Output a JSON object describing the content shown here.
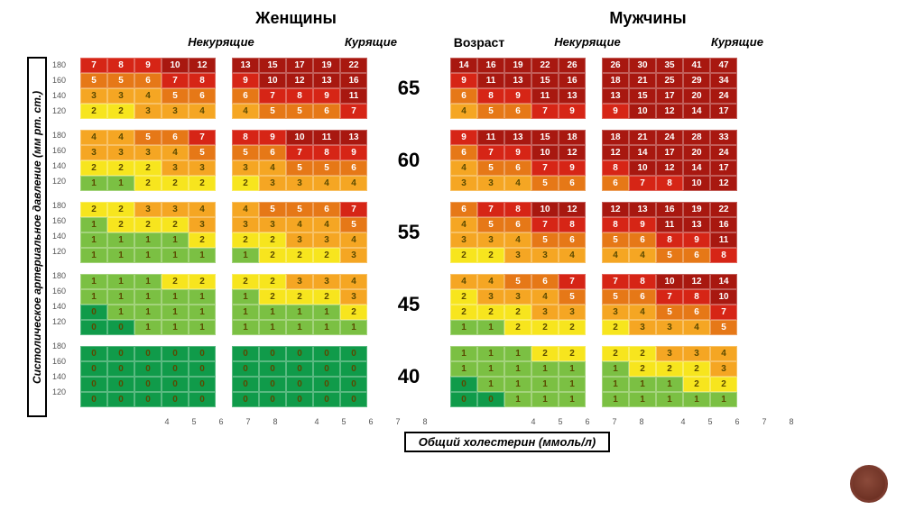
{
  "headers": {
    "women": "Женщины",
    "men": "Мужчины",
    "nonsmokers": "Некурящие",
    "smokers": "Курящие",
    "age": "Возраст"
  },
  "axes": {
    "y_label": "Систолическое артериальное давление (мм рт. ст.)",
    "x_label": "Общий холестерин (ммоль/л)",
    "y_ticks": [
      180,
      160,
      140,
      120
    ],
    "x_ticks": [
      4,
      5,
      6,
      7,
      8
    ]
  },
  "layout": {
    "block_w": 150,
    "block_h": 68,
    "y_tick_col_w": 26,
    "age_col_w": 58,
    "row_gap": 10
  },
  "colors": {
    "dark_green": "#109b4a",
    "green": "#7bc043",
    "yellow": "#f7e51e",
    "orange": "#f5a623",
    "dark_orange": "#e67817",
    "red": "#d62516",
    "dark_red": "#a81810",
    "text_on_dark": "#ffffff",
    "text_on_light": "#5a4a00"
  },
  "color_map": {
    "0": "dark_green",
    "1": "green",
    "2": "yellow",
    "3": "orange",
    "4": "orange",
    "5": "dark_orange",
    "6": "dark_orange",
    "7": "red",
    "8": "red",
    "9": "red",
    "default_high": "dark_red"
  },
  "ages": [
    65,
    60,
    55,
    45,
    40
  ],
  "blocks_order": [
    "women_nonsmoker",
    "women_smoker",
    "men_nonsmoker",
    "men_smoker"
  ],
  "data": {
    "65": {
      "women_nonsmoker": [
        [
          7,
          8,
          9,
          10,
          12
        ],
        [
          5,
          5,
          6,
          7,
          8
        ],
        [
          3,
          3,
          4,
          5,
          6
        ],
        [
          2,
          2,
          3,
          3,
          4
        ]
      ],
      "women_smoker": [
        [
          13,
          15,
          17,
          19,
          22
        ],
        [
          9,
          10,
          12,
          13,
          16
        ],
        [
          6,
          7,
          8,
          9,
          11
        ],
        [
          4,
          5,
          5,
          6,
          7
        ]
      ],
      "men_nonsmoker": [
        [
          14,
          16,
          19,
          22,
          26
        ],
        [
          9,
          11,
          13,
          15,
          16
        ],
        [
          6,
          8,
          9,
          11,
          13
        ],
        [
          4,
          5,
          6,
          7,
          9
        ]
      ],
      "men_smoker": [
        [
          26,
          30,
          35,
          41,
          47
        ],
        [
          18,
          21,
          25,
          29,
          34
        ],
        [
          13,
          15,
          17,
          20,
          24
        ],
        [
          9,
          10,
          12,
          14,
          17
        ]
      ]
    },
    "60": {
      "women_nonsmoker": [
        [
          4,
          4,
          5,
          6,
          7
        ],
        [
          3,
          3,
          3,
          4,
          5
        ],
        [
          2,
          2,
          2,
          3,
          3
        ],
        [
          1,
          1,
          2,
          2,
          2
        ]
      ],
      "women_smoker": [
        [
          8,
          9,
          10,
          11,
          13
        ],
        [
          5,
          6,
          7,
          8,
          9
        ],
        [
          3,
          4,
          5,
          5,
          6
        ],
        [
          2,
          3,
          3,
          4,
          4
        ]
      ],
      "men_nonsmoker": [
        [
          9,
          11,
          13,
          15,
          18
        ],
        [
          6,
          7,
          9,
          10,
          12
        ],
        [
          4,
          5,
          6,
          7,
          9
        ],
        [
          3,
          3,
          4,
          5,
          6
        ]
      ],
      "men_smoker": [
        [
          18,
          21,
          24,
          28,
          33
        ],
        [
          12,
          14,
          17,
          20,
          24
        ],
        [
          8,
          10,
          12,
          14,
          17
        ],
        [
          6,
          7,
          8,
          10,
          12
        ]
      ]
    },
    "55": {
      "women_nonsmoker": [
        [
          2,
          2,
          3,
          3,
          4
        ],
        [
          1,
          2,
          2,
          2,
          3
        ],
        [
          1,
          1,
          1,
          1,
          2
        ],
        [
          1,
          1,
          1,
          1,
          1
        ]
      ],
      "women_smoker": [
        [
          4,
          5,
          5,
          6,
          7
        ],
        [
          3,
          3,
          4,
          4,
          5
        ],
        [
          2,
          2,
          3,
          3,
          4
        ],
        [
          1,
          2,
          2,
          2,
          3
        ]
      ],
      "men_nonsmoker": [
        [
          6,
          7,
          8,
          10,
          12
        ],
        [
          4,
          5,
          6,
          7,
          8
        ],
        [
          3,
          3,
          4,
          5,
          6
        ],
        [
          2,
          2,
          3,
          3,
          4
        ]
      ],
      "men_smoker": [
        [
          12,
          13,
          16,
          19,
          22
        ],
        [
          8,
          9,
          11,
          13,
          16
        ],
        [
          5,
          6,
          8,
          9,
          11
        ],
        [
          4,
          4,
          5,
          6,
          8
        ]
      ]
    },
    "45": {
      "women_nonsmoker": [
        [
          1,
          1,
          1,
          2,
          2
        ],
        [
          1,
          1,
          1,
          1,
          1
        ],
        [
          0,
          1,
          1,
          1,
          1
        ],
        [
          0,
          0,
          1,
          1,
          1
        ]
      ],
      "women_smoker": [
        [
          2,
          2,
          3,
          3,
          4
        ],
        [
          1,
          2,
          2,
          2,
          3
        ],
        [
          1,
          1,
          1,
          1,
          2
        ],
        [
          1,
          1,
          1,
          1,
          1
        ]
      ],
      "men_nonsmoker": [
        [
          4,
          4,
          5,
          6,
          7
        ],
        [
          2,
          3,
          3,
          4,
          5
        ],
        [
          2,
          2,
          2,
          3,
          3
        ],
        [
          1,
          1,
          2,
          2,
          2
        ]
      ],
      "men_smoker": [
        [
          7,
          8,
          10,
          12,
          14
        ],
        [
          5,
          6,
          7,
          8,
          10
        ],
        [
          3,
          4,
          5,
          6,
          7
        ],
        [
          2,
          3,
          3,
          4,
          5
        ]
      ]
    },
    "40": {
      "women_nonsmoker": [
        [
          0,
          0,
          0,
          0,
          0
        ],
        [
          0,
          0,
          0,
          0,
          0
        ],
        [
          0,
          0,
          0,
          0,
          0
        ],
        [
          0,
          0,
          0,
          0,
          0
        ]
      ],
      "women_smoker": [
        [
          0,
          0,
          0,
          0,
          0
        ],
        [
          0,
          0,
          0,
          0,
          0
        ],
        [
          0,
          0,
          0,
          0,
          0
        ],
        [
          0,
          0,
          0,
          0,
          0
        ]
      ],
      "men_nonsmoker": [
        [
          1,
          1,
          1,
          2,
          2
        ],
        [
          1,
          1,
          1,
          1,
          1
        ],
        [
          0,
          1,
          1,
          1,
          1
        ],
        [
          0,
          0,
          1,
          1,
          1
        ]
      ],
      "men_smoker": [
        [
          2,
          2,
          3,
          3,
          4
        ],
        [
          1,
          2,
          2,
          2,
          3
        ],
        [
          1,
          1,
          1,
          2,
          2
        ],
        [
          1,
          1,
          1,
          1,
          1
        ]
      ]
    }
  }
}
